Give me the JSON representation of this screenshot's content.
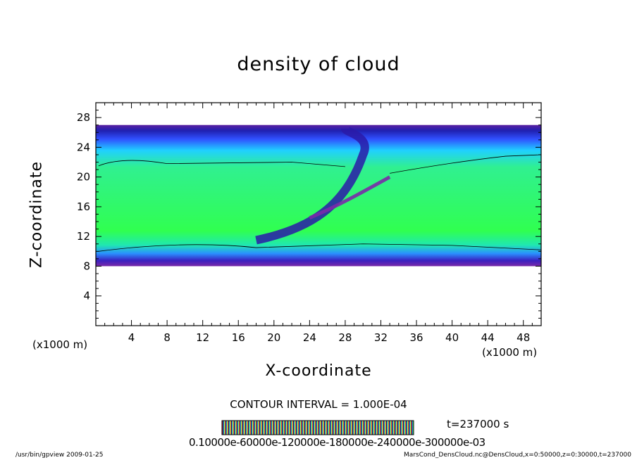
{
  "chart_data": {
    "type": "heatmap",
    "title": "density of cloud",
    "xlabel": "X-coordinate",
    "ylabel": "Z-coordinate",
    "x_unit": "(x1000 m)",
    "xlim": [
      0,
      50
    ],
    "ylim": [
      0,
      30
    ],
    "x_ticks": [
      4,
      8,
      12,
      16,
      20,
      24,
      28,
      32,
      36,
      40,
      44,
      48
    ],
    "y_ticks": [
      4,
      8,
      12,
      16,
      20,
      24,
      28
    ],
    "cloud_layer": {
      "z_bottom": 8,
      "z_top": 27
    },
    "contour_interval": "CONTOUR INTERVAL = 1.000E-04",
    "time": "t=237000 s",
    "colorbar_labels": "0.10000e-60000e-120000e-180000e-240000e-300000e-03",
    "colors": {
      "low": "#3a0a7a",
      "mid": "#10ff40",
      "high": "#ff3030"
    }
  },
  "footer": {
    "left": "/usr/bin/gpview   2009-01-25",
    "right": "MarsCond_DensCloud.nc@DensCloud,x=0:50000,z=0:30000,t=237000"
  }
}
